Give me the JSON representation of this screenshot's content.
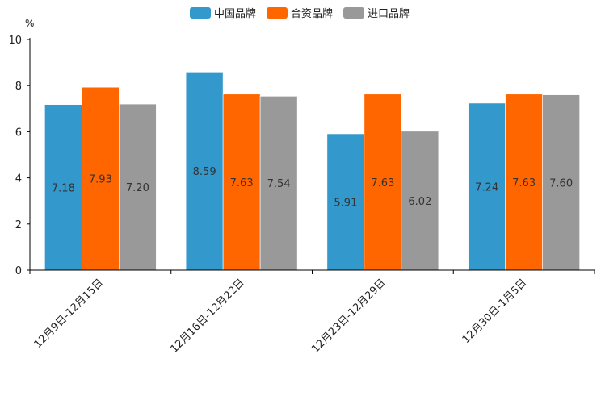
{
  "chart_data": {
    "type": "bar",
    "title": "",
    "xlabel": "",
    "ylabel": "%",
    "ylim": [
      0,
      10
    ],
    "yticks": [
      0,
      2,
      4,
      6,
      8,
      10
    ],
    "grid": false,
    "legend_position": "top-center",
    "categories": [
      "12月9日-12月15日",
      "12月16日-12月22日",
      "12月23日-12月29日",
      "12月30日-1月5日"
    ],
    "series": [
      {
        "name": "中国品牌",
        "color": "#3399CC",
        "values": [
          7.18,
          8.59,
          5.91,
          7.24
        ],
        "labels": [
          "7.18",
          "8.59",
          "5.91",
          "7.24"
        ]
      },
      {
        "name": "合资品牌",
        "color": "#FF6600",
        "values": [
          7.93,
          7.63,
          7.63,
          7.63
        ],
        "labels": [
          "7.93",
          "7.63",
          "7.63",
          "7.63"
        ]
      },
      {
        "name": "进口品牌",
        "color": "#999999",
        "values": [
          7.2,
          7.54,
          6.02,
          7.6
        ],
        "labels": [
          "7.20",
          "7.54",
          "6.02",
          "7.60"
        ]
      }
    ]
  }
}
